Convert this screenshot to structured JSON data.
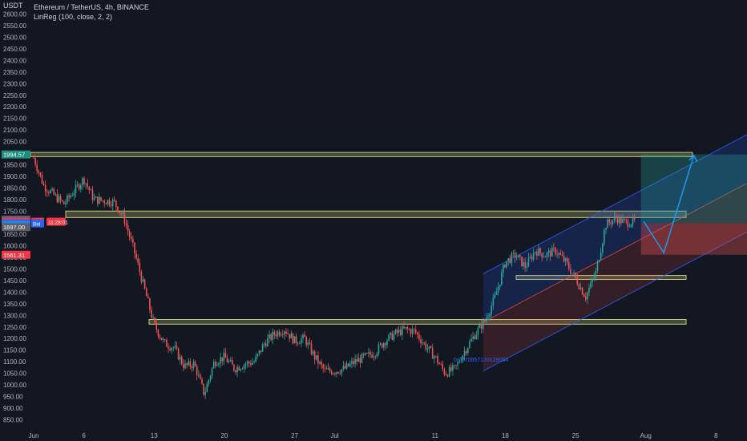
{
  "legend": {
    "currency": "USDT",
    "symbol_line": "Ethereum / TetherUS, 4h, BINANCE",
    "indicator_line": "LinReg (100, close, 2, 2)"
  },
  "price_axis": {
    "ticks": [
      "2600.00",
      "2550.00",
      "2500.00",
      "2450.00",
      "2400.00",
      "2350.00",
      "2300.00",
      "2250.00",
      "2200.00",
      "2150.00",
      "2100.00",
      "2050.00",
      "2000.00",
      "1950.00",
      "1900.00",
      "1850.00",
      "1800.00",
      "1750.00",
      "1700.00",
      "1650.00",
      "1600.00",
      "1550.00",
      "1500.00",
      "1450.00",
      "1400.00",
      "1350.00",
      "1300.00",
      "1250.00",
      "1200.00",
      "1150.00",
      "1100.00",
      "1050.00",
      "1000.00",
      "950.00",
      "900.00",
      "850.00"
    ]
  },
  "time_axis": {
    "ticks": [
      "Jun",
      "6",
      "13",
      "20",
      "27",
      "Jul",
      "11",
      "18",
      "25",
      "Aug",
      "8"
    ]
  },
  "price_tags": {
    "upper": "1994.57",
    "t1": "1712.88",
    "ask_price": "1709.30",
    "ask_label": "Ask",
    "bid_price": "1709.29",
    "bid_label": "Bid",
    "timer": "11:28:01",
    "last": "1705.29",
    "t2": "1697.00",
    "stop": "1561.31"
  },
  "annotation": "0.7770657120129054",
  "colors": {
    "background": "#131722",
    "up": "#26a69a",
    "down": "#ef5350",
    "zone_fill": "#c9cc7a",
    "channel": "#2962ff",
    "arrow": "#2196f3"
  },
  "chart_data": {
    "type": "candlestick",
    "symbol": "Ethereum / TetherUS",
    "interval": "4h",
    "exchange": "BINANCE",
    "indicator": "LinReg (100, close, 2, 2)",
    "ylim": [
      850,
      2600
    ],
    "path_points": [
      [
        "Jun 1",
        1980
      ],
      [
        "Jun 2",
        1860
      ],
      [
        "Jun 4",
        1780
      ],
      [
        "Jun 6",
        1890
      ],
      [
        "Jun 7",
        1800
      ],
      [
        "Jun 9",
        1790
      ],
      [
        "Jun 10",
        1720
      ],
      [
        "Jun 11",
        1580
      ],
      [
        "Jun 12",
        1420
      ],
      [
        "Jun 13",
        1260
      ],
      [
        "Jun 14",
        1180
      ],
      [
        "Jun 15",
        1160
      ],
      [
        "Jun 16",
        1080
      ],
      [
        "Jun 17",
        1090
      ],
      [
        "Jun 18",
        960
      ],
      [
        "Jun 19",
        1100
      ],
      [
        "Jun 20",
        1120
      ],
      [
        "Jun 21",
        1070
      ],
      [
        "Jun 22",
        1090
      ],
      [
        "Jun 23",
        1100
      ],
      [
        "Jun 24",
        1180
      ],
      [
        "Jun 25",
        1220
      ],
      [
        "Jun 26",
        1240
      ],
      [
        "Jun 27",
        1190
      ],
      [
        "Jun 28",
        1200
      ],
      [
        "Jun 29",
        1120
      ],
      [
        "Jun 30",
        1060
      ],
      [
        "Jul 1",
        1060
      ],
      [
        "Jul 2",
        1070
      ],
      [
        "Jul 3",
        1100
      ],
      [
        "Jul 5",
        1140
      ],
      [
        "Jul 6",
        1190
      ],
      [
        "Jul 7",
        1220
      ],
      [
        "Jul 8",
        1240
      ],
      [
        "Jul 9",
        1230
      ],
      [
        "Jul 10",
        1170
      ],
      [
        "Jul 11",
        1120
      ],
      [
        "Jul 12",
        1050
      ],
      [
        "Jul 13",
        1070
      ],
      [
        "Jul 14",
        1150
      ],
      [
        "Jul 15",
        1220
      ],
      [
        "Jul 16",
        1280
      ],
      [
        "Jul 17",
        1380
      ],
      [
        "Jul 18",
        1530
      ],
      [
        "Jul 19",
        1560
      ],
      [
        "Jul 20",
        1510
      ],
      [
        "Jul 21",
        1580
      ],
      [
        "Jul 22",
        1560
      ],
      [
        "Jul 23",
        1580
      ],
      [
        "Jul 24",
        1530
      ],
      [
        "Jul 25",
        1460
      ],
      [
        "Jul 26",
        1380
      ],
      [
        "Jul 27",
        1480
      ],
      [
        "Jul 28",
        1690
      ],
      [
        "Jul 29",
        1720
      ],
      [
        "Jul 30",
        1700
      ],
      [
        "Jul 31",
        1705
      ]
    ],
    "horizontal_zones": [
      {
        "from": 1985,
        "to": 2003
      },
      {
        "from": 1722,
        "to": 1750
      },
      {
        "from": 1455,
        "to": 1472
      },
      {
        "from": 1262,
        "to": 1282
      }
    ],
    "projection": [
      [
        "Jul 31",
        1705
      ],
      [
        "Aug 2",
        1570
      ],
      [
        "Aug 5",
        1990
      ]
    ],
    "position": {
      "entry": 1697,
      "target": 1994.57,
      "stop": 1561.31
    }
  }
}
